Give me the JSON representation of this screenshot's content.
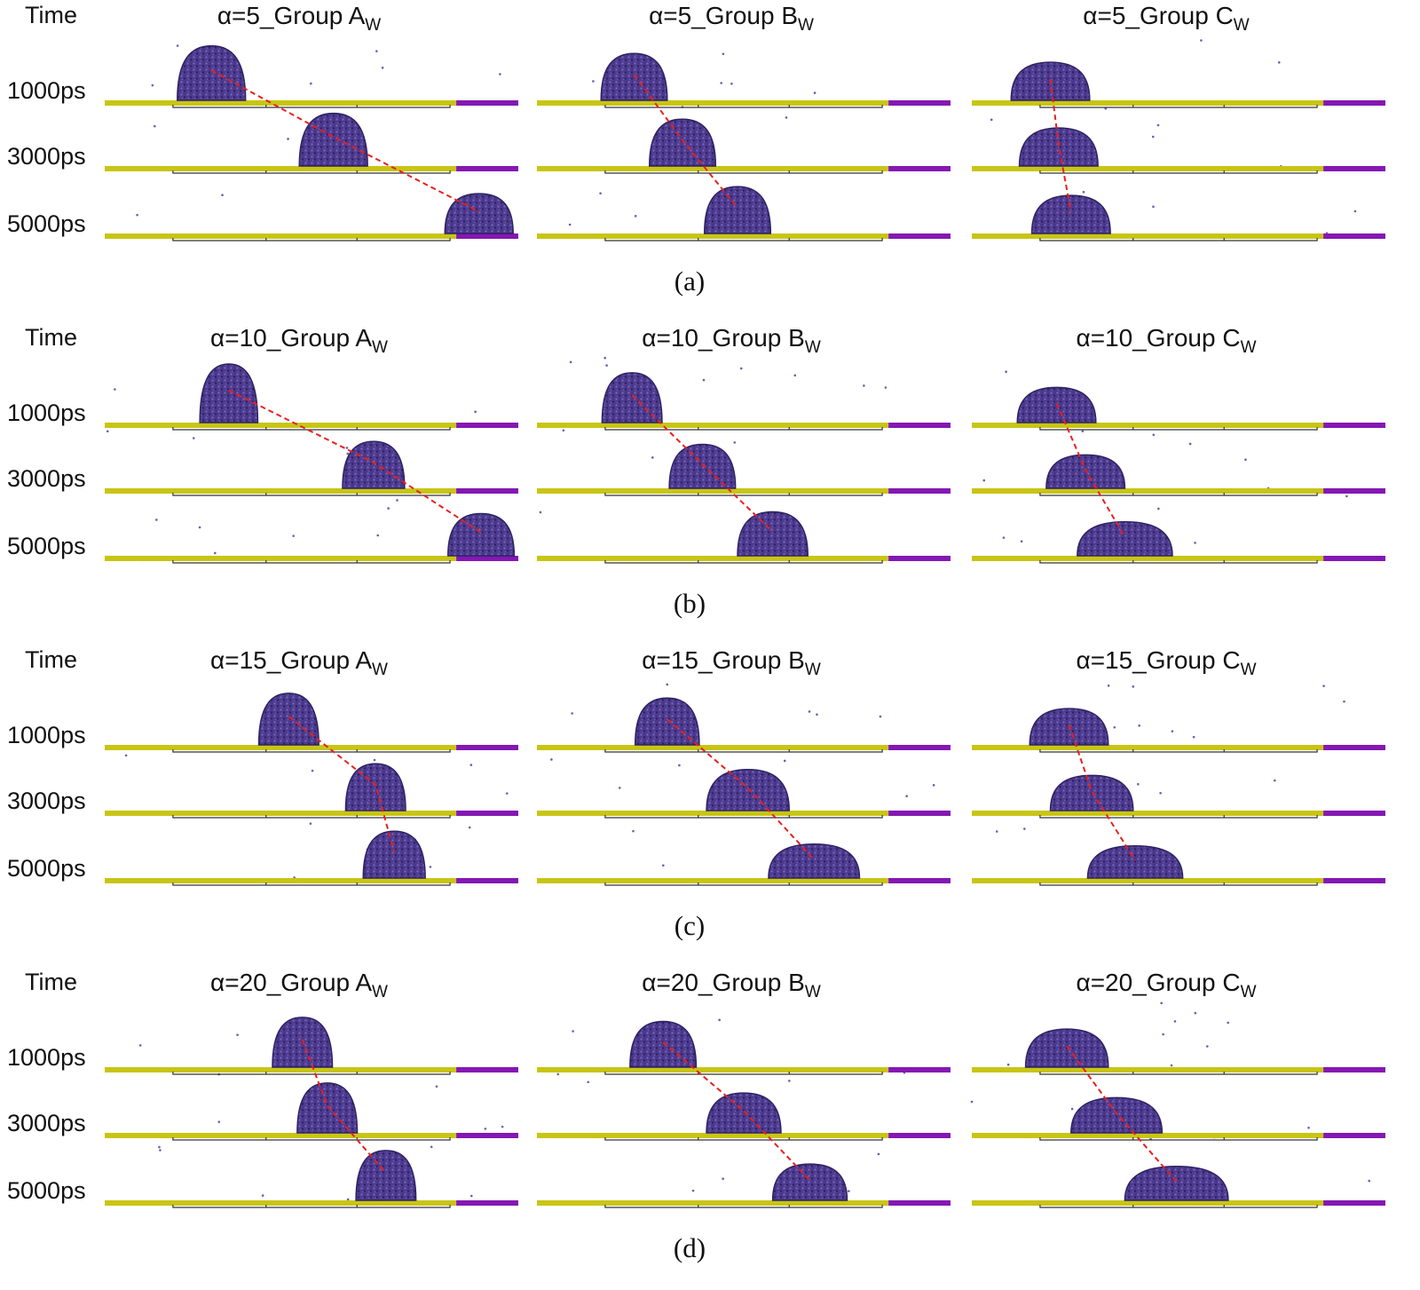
{
  "colors": {
    "droplet": "#4e3b8f",
    "droplet_dark": "#2d2160",
    "droplet_light": "#7b68c2",
    "trail": "#e8201e",
    "hydrophilic": "#c8c515",
    "hydrophilic_edge": "#8e8b08",
    "hydrophobic": "#8418b3",
    "segment_line": "#333333",
    "molecule": "#6a5fb0"
  },
  "time_header": "Time",
  "time_labels": [
    "1000ps",
    "3000ps",
    "5000ps"
  ],
  "panels": [
    {
      "caption": "(a)",
      "groups": [
        {
          "title_main": "α=5_Group A",
          "title_sub": "W",
          "droplets": [
            {
              "pos": 0.258,
              "width": 0.165,
              "height": 0.93
            },
            {
              "pos": 0.553,
              "width": 0.165,
              "height": 0.9
            },
            {
              "pos": 0.905,
              "width": 0.165,
              "height": 0.68
            }
          ]
        },
        {
          "title_main": "α=5_Group B",
          "title_sub": "W",
          "droplets": [
            {
              "pos": 0.235,
              "width": 0.16,
              "height": 0.8
            },
            {
              "pos": 0.352,
              "width": 0.16,
              "height": 0.8
            },
            {
              "pos": 0.485,
              "width": 0.16,
              "height": 0.8
            }
          ]
        },
        {
          "title_main": "α=5_Group C",
          "title_sub": "W",
          "droplets": [
            {
              "pos": 0.19,
              "width": 0.19,
              "height": 0.65
            },
            {
              "pos": 0.21,
              "width": 0.19,
              "height": 0.65
            },
            {
              "pos": 0.24,
              "width": 0.19,
              "height": 0.65
            }
          ]
        }
      ]
    },
    {
      "caption": "(b)",
      "groups": [
        {
          "title_main": "α=10_Group A",
          "title_sub": "W",
          "droplets": [
            {
              "pos": 0.3,
              "width": 0.14,
              "height": 1.0
            },
            {
              "pos": 0.65,
              "width": 0.15,
              "height": 0.8
            },
            {
              "pos": 0.91,
              "width": 0.16,
              "height": 0.72
            }
          ]
        },
        {
          "title_main": "α=10_Group B",
          "title_sub": "W",
          "droplets": [
            {
              "pos": 0.23,
              "width": 0.145,
              "height": 0.85
            },
            {
              "pos": 0.4,
              "width": 0.16,
              "height": 0.75
            },
            {
              "pos": 0.57,
              "width": 0.17,
              "height": 0.75
            }
          ]
        },
        {
          "title_main": "α=10_Group C",
          "title_sub": "W",
          "droplets": [
            {
              "pos": 0.205,
              "width": 0.19,
              "height": 0.6
            },
            {
              "pos": 0.275,
              "width": 0.19,
              "height": 0.57
            },
            {
              "pos": 0.37,
              "width": 0.23,
              "height": 0.58
            }
          ]
        }
      ]
    },
    {
      "caption": "(c)",
      "groups": [
        {
          "title_main": "α=15_Group A",
          "title_sub": "W",
          "droplets": [
            {
              "pos": 0.445,
              "width": 0.145,
              "height": 0.88
            },
            {
              "pos": 0.655,
              "width": 0.145,
              "height": 0.8
            },
            {
              "pos": 0.7,
              "width": 0.15,
              "height": 0.8
            }
          ]
        },
        {
          "title_main": "α=15_Group B",
          "title_sub": "W",
          "droplets": [
            {
              "pos": 0.315,
              "width": 0.155,
              "height": 0.8
            },
            {
              "pos": 0.51,
              "width": 0.2,
              "height": 0.7
            },
            {
              "pos": 0.67,
              "width": 0.22,
              "height": 0.58
            }
          ]
        },
        {
          "title_main": "α=15_Group C",
          "title_sub": "W",
          "droplets": [
            {
              "pos": 0.235,
              "width": 0.19,
              "height": 0.62
            },
            {
              "pos": 0.29,
              "width": 0.2,
              "height": 0.6
            },
            {
              "pos": 0.395,
              "width": 0.23,
              "height": 0.55
            }
          ]
        }
      ]
    },
    {
      "caption": "(d)",
      "groups": [
        {
          "title_main": "α=20_Group A",
          "title_sub": "W",
          "droplets": [
            {
              "pos": 0.478,
              "width": 0.145,
              "height": 0.85
            },
            {
              "pos": 0.538,
              "width": 0.145,
              "height": 0.85
            },
            {
              "pos": 0.68,
              "width": 0.145,
              "height": 0.85
            }
          ]
        },
        {
          "title_main": "α=20_Group B",
          "title_sub": "W",
          "droplets": [
            {
              "pos": 0.305,
              "width": 0.16,
              "height": 0.78
            },
            {
              "pos": 0.5,
              "width": 0.18,
              "height": 0.68
            },
            {
              "pos": 0.66,
              "width": 0.18,
              "height": 0.62
            }
          ]
        },
        {
          "title_main": "α=20_Group C",
          "title_sub": "W",
          "droplets": [
            {
              "pos": 0.23,
              "width": 0.2,
              "height": 0.65
            },
            {
              "pos": 0.35,
              "width": 0.22,
              "height": 0.6
            },
            {
              "pos": 0.495,
              "width": 0.25,
              "height": 0.58
            }
          ]
        }
      ]
    }
  ]
}
